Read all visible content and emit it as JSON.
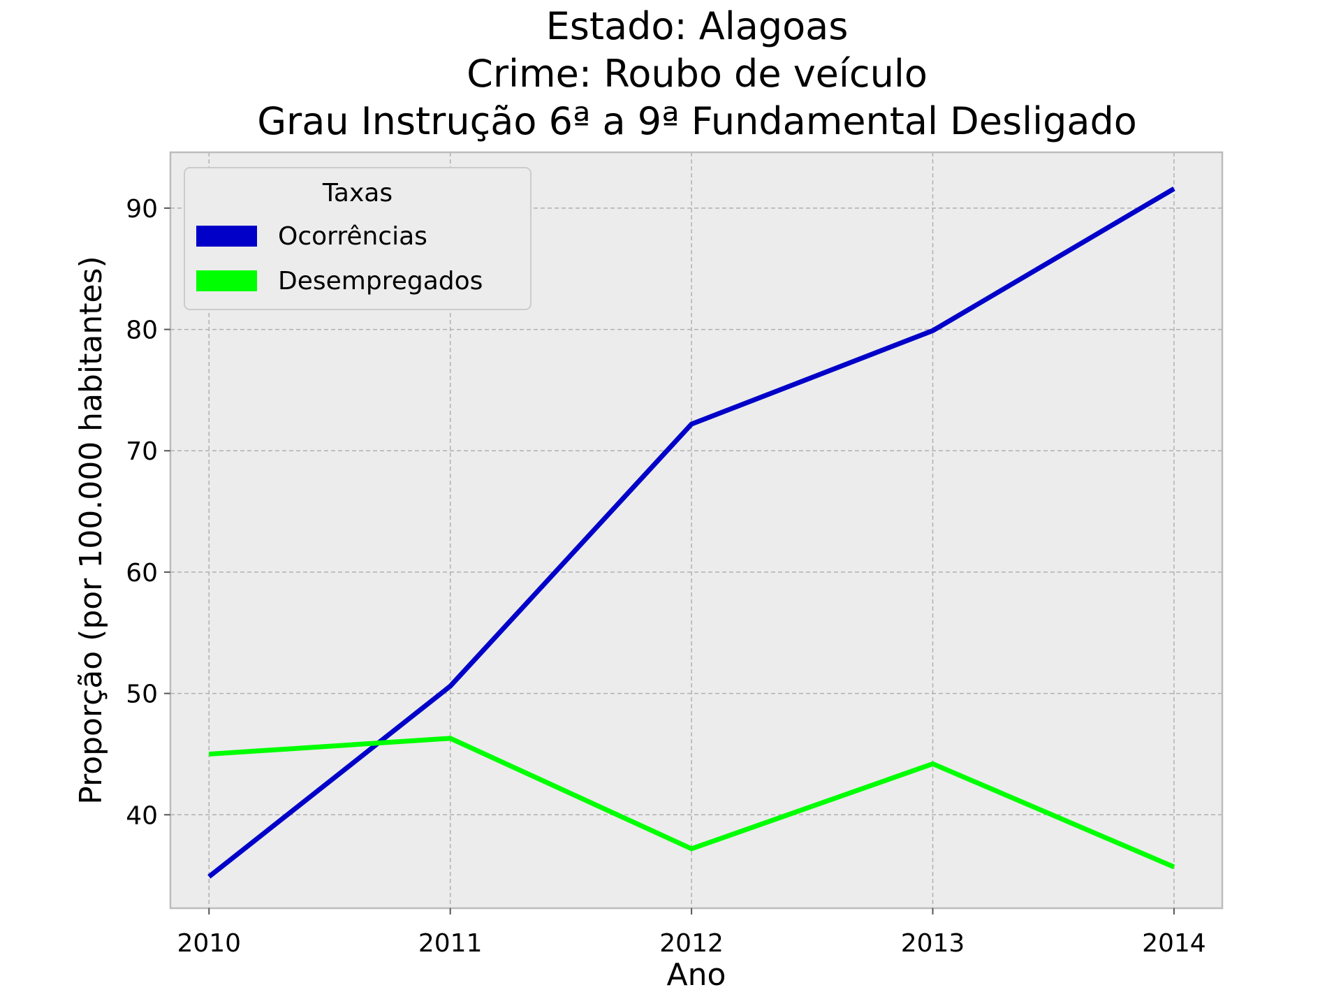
{
  "chart_data": {
    "type": "line",
    "title_lines": [
      "Estado: Alagoas",
      "Crime: Roubo de veículo",
      "Grau Instrução  6ª a 9ª Fundamental   Desligado"
    ],
    "xlabel": "Ano",
    "ylabel": "Proporção (por 100.000 habitantes)",
    "x": [
      2010,
      2011,
      2012,
      2013,
      2014
    ],
    "x_tick_labels": [
      "2010",
      "2011",
      "2012",
      "2013",
      "2014"
    ],
    "xlim": [
      2009.84,
      2014.2
    ],
    "ylim": [
      32.3,
      94.6
    ],
    "y_ticks": [
      40,
      50,
      60,
      70,
      80,
      90
    ],
    "y_tick_labels": [
      "40",
      "50",
      "60",
      "70",
      "80",
      "90"
    ],
    "grid": true,
    "legend": {
      "title": "Taxas",
      "placement": "top-left"
    },
    "series": [
      {
        "name": "Ocorrências",
        "color": "#0000c8",
        "values": [
          34.9,
          50.6,
          72.2,
          79.9,
          91.6
        ]
      },
      {
        "name": "Desempregados",
        "color": "#00ff00",
        "values": [
          45.0,
          46.3,
          37.2,
          44.2,
          35.7
        ]
      }
    ],
    "colors": {
      "plot_background": "#ececec",
      "grid": "#b0b0b0",
      "spine": "#bcbcbc"
    }
  }
}
